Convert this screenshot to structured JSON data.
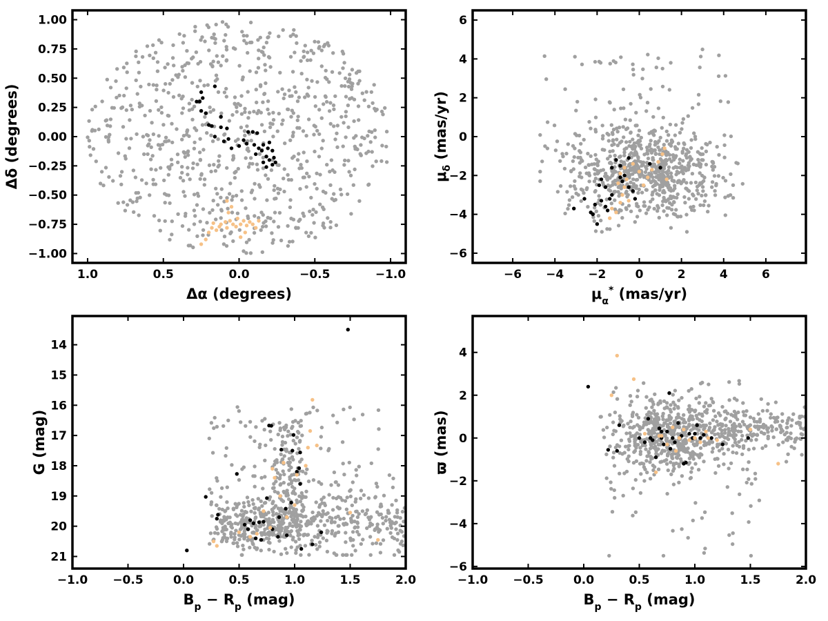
{
  "figure": {
    "colors": {
      "field": "#a0a0a0",
      "group_black": "#000000",
      "group_orange": "#f6c187"
    }
  },
  "chart_data": [
    {
      "id": "positions",
      "type": "scatter",
      "xlabel": "Δα (degrees)",
      "ylabel": "Δδ (degrees)",
      "xlim": [
        1.1,
        -1.1
      ],
      "ylim": [
        -1.08,
        1.08
      ],
      "x_inverted": true,
      "xticks": [
        1.0,
        0.5,
        0.0,
        -0.5,
        -1.0
      ],
      "xtick_labels": [
        "1.0",
        "0.5",
        "0.0",
        "−0.5",
        "−1.0"
      ],
      "yticks": [
        1.0,
        0.75,
        0.5,
        0.25,
        0.0,
        -0.25,
        -0.5,
        -0.75,
        -1.0
      ],
      "ytick_labels": [
        "1.00",
        "0.75",
        "0.50",
        "0.25",
        "0.00",
        "−0.25",
        "−0.50",
        "−0.75",
        "−1.00"
      ],
      "field": {
        "shape": "disk",
        "center": [
          0,
          0
        ],
        "radius": 1.0,
        "count": 800,
        "color": "#a0a0a0"
      },
      "series": [
        {
          "color": "#000000",
          "points": [
            [
              0.25,
              0.38
            ],
            [
              0.24,
              0.33
            ],
            [
              0.26,
              0.3
            ],
            [
              0.28,
              0.3
            ],
            [
              0.25,
              0.22
            ],
            [
              0.22,
              0.2
            ],
            [
              0.16,
              0.43
            ],
            [
              0.2,
              0.1
            ],
            [
              0.18,
              0.09
            ],
            [
              0.12,
              0.08
            ],
            [
              0.16,
              0.0
            ],
            [
              0.08,
              0.07
            ],
            [
              0.07,
              -0.02
            ],
            [
              0.1,
              -0.04
            ],
            [
              0.0,
              -0.08
            ],
            [
              -0.03,
              -0.03
            ],
            [
              -0.05,
              -0.06
            ],
            [
              -0.06,
              0.04
            ],
            [
              -0.09,
              0.04
            ],
            [
              -0.12,
              0.03
            ],
            [
              -0.1,
              -0.07
            ],
            [
              -0.13,
              -0.1
            ],
            [
              -0.15,
              -0.12
            ],
            [
              -0.11,
              -0.15
            ],
            [
              -0.16,
              -0.07
            ],
            [
              -0.2,
              -0.05
            ],
            [
              -0.19,
              -0.1
            ],
            [
              -0.18,
              -0.17
            ],
            [
              -0.2,
              -0.2
            ],
            [
              -0.22,
              -0.24
            ],
            [
              -0.24,
              -0.22
            ],
            [
              -0.16,
              -0.22
            ],
            [
              -0.18,
              -0.26
            ],
            [
              -0.23,
              -0.18
            ],
            [
              0.05,
              -0.1
            ],
            [
              0.12,
              0.17
            ],
            [
              -0.22,
              -0.12
            ]
          ]
        },
        {
          "color": "#f6c187",
          "points": [
            [
              0.25,
              -0.92
            ],
            [
              0.22,
              -0.88
            ],
            [
              0.2,
              -0.82
            ],
            [
              0.18,
              -0.78
            ],
            [
              0.15,
              -0.8
            ],
            [
              0.13,
              -0.77
            ],
            [
              0.12,
              -0.75
            ],
            [
              0.09,
              -0.73
            ],
            [
              0.08,
              -0.78
            ],
            [
              0.06,
              -0.72
            ],
            [
              0.04,
              -0.75
            ],
            [
              0.02,
              -0.77
            ],
            [
              0.01,
              -0.7
            ],
            [
              -0.01,
              -0.75
            ],
            [
              -0.03,
              -0.72
            ],
            [
              -0.05,
              -0.76
            ],
            [
              -0.07,
              -0.73
            ],
            [
              -0.09,
              -0.75
            ],
            [
              -0.11,
              -0.78
            ],
            [
              -0.13,
              -0.72
            ],
            [
              0.05,
              -0.6
            ],
            [
              0.08,
              -0.55
            ],
            [
              0.07,
              -0.65
            ],
            [
              -0.04,
              -0.82
            ],
            [
              0.17,
              -0.74
            ],
            [
              -0.01,
              -0.86
            ]
          ]
        }
      ]
    },
    {
      "id": "proper-motion",
      "type": "scatter",
      "xlabel_main": "μ",
      "xlabel_sub": "α",
      "xlabel_sup": "*",
      "xlabel_unit": " (mas/yr)",
      "ylabel_main": "μ",
      "ylabel_sub": "δ",
      "ylabel_unit": " (mas/yr)",
      "xlim": [
        -7.9,
        7.9
      ],
      "ylim": [
        -6.5,
        6.5
      ],
      "xticks": [
        -6,
        -4,
        -2,
        0,
        2,
        4,
        6
      ],
      "xtick_labels": [
        "−6",
        "−4",
        "−2",
        "0",
        "2",
        "4",
        "6"
      ],
      "yticks": [
        -6,
        -4,
        -2,
        0,
        2,
        4,
        6
      ],
      "ytick_labels": [
        "−6",
        "−4",
        "−2",
        "0",
        "2",
        "4",
        "6"
      ],
      "field": {
        "shape": "blob",
        "center": [
          0.3,
          -1.8
        ],
        "spread": [
          2.1,
          1.35
        ],
        "xrange": [
          -4.7,
          4.9
        ],
        "yrange": [
          -4.9,
          4.7
        ],
        "count": 800,
        "color": "#a0a0a0"
      },
      "series": [
        {
          "color": "#000000",
          "points": [
            [
              -3.1,
              -3.7
            ],
            [
              -2.6,
              -3.2
            ],
            [
              -2.0,
              -4.5
            ],
            [
              -2.2,
              -4.0
            ],
            [
              -2.1,
              -3.5
            ],
            [
              -1.8,
              -3.3
            ],
            [
              -1.6,
              -3.6
            ],
            [
              -1.4,
              -3.2
            ],
            [
              -1.3,
              -3.0
            ],
            [
              -1.6,
              -2.6
            ],
            [
              -1.8,
              -2.2
            ],
            [
              -1.9,
              -2.5
            ],
            [
              -1.3,
              -1.6
            ],
            [
              -1.1,
              -1.2
            ],
            [
              -0.9,
              -1.5
            ],
            [
              -0.7,
              -2.0
            ],
            [
              -0.8,
              -2.3
            ],
            [
              -0.5,
              -2.6
            ],
            [
              -0.3,
              -2.8
            ],
            [
              -0.2,
              -3.2
            ],
            [
              -0.5,
              -1.1
            ],
            [
              0.5,
              -1.4
            ],
            [
              1.0,
              -1.6
            ],
            [
              -1.5,
              -3.8
            ],
            [
              -0.9,
              -2.1
            ],
            [
              -2.3,
              -3.9
            ]
          ]
        },
        {
          "color": "#f6c187",
          "points": [
            [
              -1.3,
              -3.7
            ],
            [
              -1.1,
              -3.9
            ],
            [
              -1.4,
              -4.2
            ],
            [
              -0.9,
              -3.4
            ],
            [
              -0.8,
              -3.0
            ],
            [
              -0.7,
              -2.6
            ],
            [
              -0.6,
              -2.2
            ],
            [
              -0.9,
              -1.9
            ],
            [
              -0.7,
              -1.6
            ],
            [
              -0.3,
              -1.4
            ],
            [
              0.0,
              -1.8
            ],
            [
              0.2,
              -2.5
            ],
            [
              0.4,
              -2.1
            ],
            [
              0.6,
              -1.7
            ],
            [
              0.9,
              -1.3
            ],
            [
              1.1,
              -0.9
            ],
            [
              1.2,
              -0.6
            ],
            [
              1.3,
              -2.2
            ],
            [
              -1.0,
              -2.4
            ],
            [
              -0.5,
              -3.3
            ]
          ]
        }
      ]
    },
    {
      "id": "cmd",
      "type": "scatter",
      "xlabel_main": "B",
      "xlabel_sub": "p",
      "xlabel_mid": " − R",
      "xlabel_sub2": "p",
      "xlabel_unit": " (mag)",
      "ylabel": "G (mag)",
      "xlim": [
        -1.0,
        2.0
      ],
      "ylim": [
        21.4,
        13.05
      ],
      "y_inverted": true,
      "xticks": [
        -1.0,
        -0.5,
        0.0,
        0.5,
        1.0,
        1.5,
        2.0
      ],
      "xtick_labels": [
        "−1.0",
        "−0.5",
        "0.0",
        "0.5",
        "1.0",
        "1.5",
        "2.0"
      ],
      "yticks": [
        21,
        20,
        19,
        18,
        17,
        16,
        15,
        14
      ],
      "ytick_labels": [
        "21",
        "20",
        "19",
        "18",
        "17",
        "16",
        "15",
        "14"
      ],
      "field": {
        "shape": "cmd",
        "count": 800,
        "color": "#a0a0a0"
      },
      "series": [
        {
          "color": "#000000",
          "points": [
            [
              0.03,
              20.8
            ],
            [
              0.2,
              19.03
            ],
            [
              0.3,
              19.75
            ],
            [
              0.31,
              19.62
            ],
            [
              0.48,
              18.27
            ],
            [
              0.58,
              20.1
            ],
            [
              0.6,
              19.8
            ],
            [
              0.63,
              19.9
            ],
            [
              0.65,
              20.4
            ],
            [
              0.68,
              19.87
            ],
            [
              0.7,
              20.45
            ],
            [
              0.72,
              19.85
            ],
            [
              0.75,
              19.07
            ],
            [
              0.77,
              16.67
            ],
            [
              0.79,
              16.68
            ],
            [
              0.8,
              20.1
            ],
            [
              0.85,
              20.35
            ],
            [
              0.86,
              19.7
            ],
            [
              0.88,
              17.47
            ],
            [
              0.92,
              19.42
            ],
            [
              0.97,
              19.22
            ],
            [
              0.98,
              17.5
            ],
            [
              0.99,
              16.98
            ],
            [
              1.02,
              18.2
            ],
            [
              1.04,
              18.08
            ],
            [
              1.05,
              18.6
            ],
            [
              1.05,
              17.56
            ],
            [
              1.06,
              20.75
            ],
            [
              1.16,
              20.6
            ],
            [
              1.24,
              20.2
            ],
            [
              1.48,
              13.5
            ],
            [
              0.93,
              20.3
            ],
            [
              0.55,
              19.95
            ]
          ]
        },
        {
          "color": "#f6c187",
          "points": [
            [
              0.27,
              20.5
            ],
            [
              0.3,
              20.65
            ],
            [
              0.5,
              20.2
            ],
            [
              0.66,
              20.25
            ],
            [
              0.78,
              20.05
            ],
            [
              0.8,
              18.1
            ],
            [
              0.82,
              18.4
            ],
            [
              0.87,
              19.0
            ],
            [
              0.9,
              17.9
            ],
            [
              0.93,
              19.7
            ],
            [
              1.0,
              19.3
            ],
            [
              1.02,
              18.3
            ],
            [
              1.1,
              18.0
            ],
            [
              1.12,
              17.4
            ],
            [
              1.14,
              16.85
            ],
            [
              1.16,
              15.82
            ],
            [
              1.2,
              17.33
            ],
            [
              1.5,
              19.55
            ],
            [
              1.75,
              20.45
            ],
            [
              0.72,
              19.5
            ],
            [
              0.6,
              20.35
            ]
          ]
        }
      ]
    },
    {
      "id": "parallax",
      "type": "scatter",
      "xlabel_main": "B",
      "xlabel_sub": "p",
      "xlabel_mid": " − R",
      "xlabel_sub2": "p",
      "xlabel_unit": " (mag)",
      "ylabel": "ϖ (mas)",
      "xlim": [
        -1.0,
        2.0
      ],
      "ylim": [
        -6.1,
        5.7
      ],
      "xticks": [
        -1.0,
        -0.5,
        0.0,
        0.5,
        1.0,
        1.5,
        2.0
      ],
      "xtick_labels": [
        "−1.0",
        "−0.5",
        "0.0",
        "0.5",
        "1.0",
        "1.5",
        "2.0"
      ],
      "yticks": [
        -6,
        -4,
        -2,
        0,
        2,
        4
      ],
      "ytick_labels": [
        "−6",
        "−4",
        "−2",
        "0",
        "2",
        "4"
      ],
      "field": {
        "shape": "parallax",
        "count": 800,
        "color": "#a0a0a0"
      },
      "series": [
        {
          "color": "#000000",
          "points": [
            [
              0.04,
              2.4
            ],
            [
              0.22,
              -0.55
            ],
            [
              0.3,
              -0.6
            ],
            [
              0.32,
              0.6
            ],
            [
              0.5,
              0.0
            ],
            [
              0.55,
              -0.2
            ],
            [
              0.58,
              0.9
            ],
            [
              0.6,
              0.0
            ],
            [
              0.62,
              -0.1
            ],
            [
              0.65,
              -0.9
            ],
            [
              0.68,
              0.45
            ],
            [
              0.7,
              0.0
            ],
            [
              0.72,
              -0.3
            ],
            [
              0.75,
              0.3
            ],
            [
              0.77,
              2.1
            ],
            [
              0.78,
              -0.5
            ],
            [
              0.8,
              0.0
            ],
            [
              0.82,
              -0.2
            ],
            [
              0.85,
              0.7
            ],
            [
              0.88,
              0.1
            ],
            [
              0.9,
              -1.2
            ],
            [
              0.92,
              -1.15
            ],
            [
              0.95,
              0.2
            ],
            [
              0.98,
              0.0
            ],
            [
              1.0,
              0.2
            ],
            [
              1.02,
              0.6
            ],
            [
              1.05,
              0.0
            ],
            [
              1.08,
              0.15
            ],
            [
              1.15,
              0.0
            ],
            [
              1.25,
              -0.3
            ],
            [
              1.48,
              0.0
            ],
            [
              0.7,
              0.3
            ]
          ]
        },
        {
          "color": "#f6c187",
          "points": [
            [
              0.25,
              2.0
            ],
            [
              0.3,
              3.85
            ],
            [
              0.45,
              2.75
            ],
            [
              0.55,
              0.2
            ],
            [
              0.65,
              -1.6
            ],
            [
              0.7,
              0.1
            ],
            [
              0.75,
              -0.3
            ],
            [
              0.8,
              0.5
            ],
            [
              0.83,
              -0.6
            ],
            [
              0.86,
              0.0
            ],
            [
              0.9,
              0.4
            ],
            [
              0.95,
              -0.1
            ],
            [
              1.0,
              0.0
            ],
            [
              1.05,
              -0.2
            ],
            [
              1.1,
              0.3
            ],
            [
              1.12,
              0.0
            ],
            [
              1.2,
              -0.1
            ],
            [
              1.5,
              0.4
            ],
            [
              1.75,
              -1.2
            ],
            [
              0.68,
              0.1
            ]
          ]
        }
      ]
    }
  ]
}
